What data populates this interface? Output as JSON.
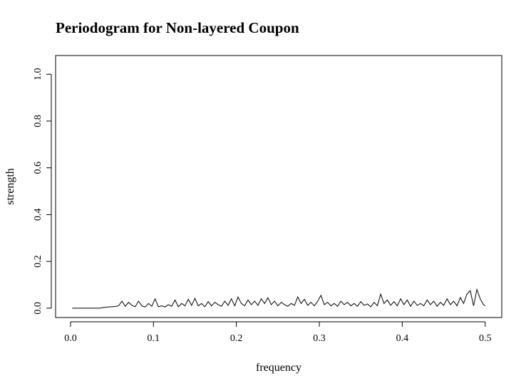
{
  "chart_data": {
    "type": "line",
    "title": "Periodogram for Non-layered Coupon",
    "xlabel": "frequency",
    "ylabel": "strength",
    "xlim": [
      -0.018,
      0.52
    ],
    "ylim": [
      -0.04,
      1.08
    ],
    "x_ticks": [
      0.0,
      0.1,
      0.2,
      0.3,
      0.4,
      0.5
    ],
    "x_tick_labels": [
      "0.0",
      "0.1",
      "0.2",
      "0.3",
      "0.4",
      "0.5"
    ],
    "y_ticks": [
      0.0,
      0.2,
      0.4,
      0.6,
      0.8,
      1.0
    ],
    "y_tick_labels": [
      "0.0",
      "0.2",
      "0.4",
      "0.6",
      "0.8",
      "1.0"
    ],
    "grid": false,
    "color": "#000000",
    "series": [
      {
        "x": [
          0.002,
          0.01,
          0.02,
          0.03,
          0.035,
          0.04,
          0.045,
          0.05,
          0.055,
          0.058,
          0.062,
          0.066,
          0.07,
          0.074,
          0.078,
          0.082,
          0.086,
          0.09,
          0.094,
          0.098,
          0.102,
          0.106,
          0.11,
          0.114,
          0.118,
          0.122,
          0.126,
          0.13,
          0.134,
          0.138,
          0.142,
          0.146,
          0.15,
          0.154,
          0.158,
          0.162,
          0.166,
          0.17,
          0.174,
          0.178,
          0.182,
          0.186,
          0.19,
          0.194,
          0.198,
          0.202,
          0.206,
          0.21,
          0.214,
          0.218,
          0.222,
          0.226,
          0.23,
          0.234,
          0.238,
          0.242,
          0.246,
          0.25,
          0.254,
          0.258,
          0.262,
          0.266,
          0.27,
          0.274,
          0.278,
          0.282,
          0.286,
          0.29,
          0.294,
          0.298,
          0.302,
          0.306,
          0.31,
          0.314,
          0.318,
          0.322,
          0.326,
          0.33,
          0.334,
          0.338,
          0.342,
          0.346,
          0.35,
          0.354,
          0.358,
          0.362,
          0.366,
          0.37,
          0.374,
          0.378,
          0.382,
          0.386,
          0.39,
          0.394,
          0.398,
          0.402,
          0.406,
          0.41,
          0.414,
          0.418,
          0.422,
          0.426,
          0.43,
          0.434,
          0.438,
          0.442,
          0.446,
          0.45,
          0.454,
          0.458,
          0.462,
          0.466,
          0.47,
          0.474,
          0.478,
          0.482,
          0.486,
          0.49,
          0.494,
          0.498,
          0.5
        ],
        "y": [
          0.0,
          0.0,
          0.0,
          0.0,
          0.0,
          0.003,
          0.005,
          0.006,
          0.008,
          0.01,
          0.03,
          0.008,
          0.025,
          0.012,
          0.006,
          0.03,
          0.01,
          0.005,
          0.02,
          0.008,
          0.04,
          0.006,
          0.01,
          0.005,
          0.015,
          0.008,
          0.035,
          0.006,
          0.02,
          0.01,
          0.038,
          0.012,
          0.042,
          0.01,
          0.02,
          0.006,
          0.028,
          0.01,
          0.025,
          0.015,
          0.008,
          0.03,
          0.012,
          0.04,
          0.01,
          0.048,
          0.02,
          0.01,
          0.035,
          0.015,
          0.03,
          0.012,
          0.04,
          0.02,
          0.045,
          0.015,
          0.03,
          0.01,
          0.025,
          0.015,
          0.008,
          0.02,
          0.012,
          0.048,
          0.02,
          0.038,
          0.012,
          0.025,
          0.01,
          0.03,
          0.055,
          0.015,
          0.025,
          0.01,
          0.02,
          0.008,
          0.03,
          0.015,
          0.025,
          0.01,
          0.02,
          0.008,
          0.028,
          0.012,
          0.018,
          0.006,
          0.025,
          0.01,
          0.06,
          0.02,
          0.035,
          0.012,
          0.028,
          0.01,
          0.04,
          0.015,
          0.035,
          0.008,
          0.03,
          0.012,
          0.02,
          0.01,
          0.035,
          0.015,
          0.03,
          0.008,
          0.025,
          0.012,
          0.04,
          0.015,
          0.03,
          0.01,
          0.045,
          0.02,
          0.06,
          0.075,
          0.01,
          0.08,
          0.04,
          0.015,
          0.01
        ]
      }
    ]
  }
}
